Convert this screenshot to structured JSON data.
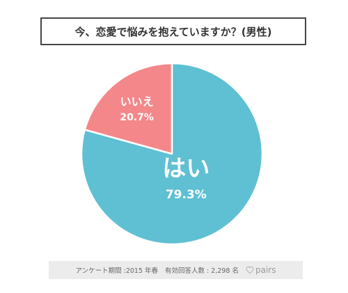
{
  "chart_data": {
    "type": "pie",
    "title": "今、恋愛で悩みを抱えていますか？(男性)",
    "categories": [
      "はい",
      "いいえ"
    ],
    "values": [
      79.3,
      20.7
    ],
    "value_labels": [
      "79.3%",
      "20.7%"
    ],
    "colors": [
      "#5fc0d3",
      "#f4878a"
    ],
    "start_angle": "12 o'clock",
    "direction": "clockwise"
  },
  "footer": {
    "survey_period": "アンケート期間 :2015 年春",
    "respondents": "有効回答人数 : 2,298 名",
    "brand": "pairs",
    "brand_icon": "heart-outline-icon"
  }
}
